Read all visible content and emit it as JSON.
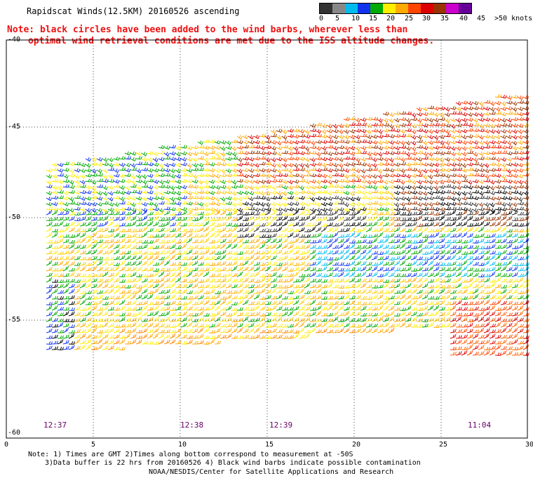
{
  "title": "Rapidscat Winds(12.5KM) 20160526 ascending",
  "note_line1": "Note: black circles have been added to the wind barbs, wherever less than",
  "note_line2": "optimal wind retrieval conditions are met due to the ISS altitude changes.",
  "legend": {
    "labels": [
      "0",
      "5",
      "10",
      "15",
      "20",
      "25",
      "30",
      "35",
      "40",
      "45",
      ">50 knots"
    ],
    "colors": [
      "#333333",
      "#888888",
      "#00bbee",
      "#1133ee",
      "#00aa00",
      "#ffee00",
      "#ffaa00",
      "#ff4400",
      "#dd0000",
      "#993300",
      "#cc00cc",
      "#660099"
    ]
  },
  "y_ticks": [
    "-40",
    "-45",
    "-50",
    "-55",
    "-60"
  ],
  "x_ticks": [
    "0",
    "5",
    "10",
    "15",
    "20",
    "25",
    "30"
  ],
  "times": [
    "12:37",
    "12:38",
    "12:39",
    "11:04"
  ],
  "footnote1": "Note: 1) Times are GMT 2)Times along bottom correspond to measurement at -50S",
  "footnote2": "3)Data buffer is 22 hrs from 20160526 4) Black wind barbs indicate possible contamination",
  "credit": "NOAA/NESDIS/Center for Satellite Applications and Research"
}
